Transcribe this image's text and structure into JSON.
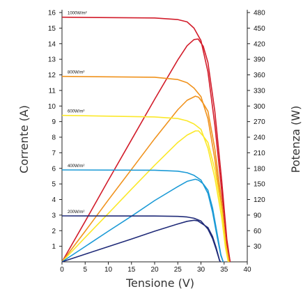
{
  "chart_data": {
    "type": "line",
    "xlabel": "Tensione (V)",
    "ylabel_left": "Corrente (A)",
    "ylabel_right": "Potenza (W)",
    "xlim": [
      0,
      40
    ],
    "ylim_left": [
      0,
      16
    ],
    "ylim_right": [
      0,
      480
    ],
    "x_ticks": [
      "0",
      "5",
      "10",
      "15",
      "20",
      "25",
      "30",
      "35",
      "40"
    ],
    "y_left_ticks": [
      "1",
      "2",
      "3",
      "4",
      "5",
      "6",
      "7",
      "8",
      "9",
      "10",
      "11",
      "12",
      "13",
      "14",
      "15",
      "16"
    ],
    "y_right_ticks": [
      "30",
      "60",
      "90",
      "120",
      "150",
      "180",
      "210",
      "240",
      "270",
      "300",
      "330",
      "360",
      "390",
      "420",
      "450",
      "480"
    ],
    "grid": false,
    "series": [
      {
        "name": "1000W/m²",
        "color": "#d21c2a",
        "current": [
          [
            0,
            15.7
          ],
          [
            20,
            15.65
          ],
          [
            25,
            15.55
          ],
          [
            27,
            15.4
          ],
          [
            28.5,
            15.0
          ],
          [
            30,
            14.2
          ],
          [
            31.5,
            12.2
          ],
          [
            33,
            8.8
          ],
          [
            34.5,
            4.5
          ],
          [
            35.6,
            1.2
          ],
          [
            36.3,
            0
          ]
        ],
        "power": [
          [
            0,
            0
          ],
          [
            5,
            78
          ],
          [
            10,
            157
          ],
          [
            15,
            235
          ],
          [
            20,
            313
          ],
          [
            25,
            389
          ],
          [
            27,
            416
          ],
          [
            28.5,
            428
          ],
          [
            29.4,
            429
          ],
          [
            30.5,
            415
          ],
          [
            31.5,
            384
          ],
          [
            33,
            290
          ],
          [
            34.5,
            155
          ],
          [
            35.6,
            43
          ],
          [
            36.3,
            0
          ]
        ]
      },
      {
        "name": "800W/m²",
        "color": "#f0921c",
        "current": [
          [
            0,
            11.9
          ],
          [
            20,
            11.85
          ],
          [
            25,
            11.7
          ],
          [
            27,
            11.5
          ],
          [
            28.5,
            11.15
          ],
          [
            30,
            10.6
          ],
          [
            31.5,
            9.2
          ],
          [
            33,
            6.6
          ],
          [
            34.5,
            3.3
          ],
          [
            35.4,
            1.0
          ],
          [
            36.1,
            0
          ]
        ],
        "power": [
          [
            0,
            0
          ],
          [
            5,
            59
          ],
          [
            10,
            119
          ],
          [
            15,
            178
          ],
          [
            20,
            237
          ],
          [
            25,
            293
          ],
          [
            27,
            311
          ],
          [
            28.8,
            319
          ],
          [
            29.5,
            317
          ],
          [
            30.5,
            305
          ],
          [
            31.5,
            290
          ],
          [
            33,
            218
          ],
          [
            34.5,
            114
          ],
          [
            35.4,
            35
          ],
          [
            36.1,
            0
          ]
        ]
      },
      {
        "name": "600W/m²",
        "color": "#fbe82a",
        "current": [
          [
            0,
            9.4
          ],
          [
            20,
            9.3
          ],
          [
            25,
            9.2
          ],
          [
            27,
            9.05
          ],
          [
            28.5,
            8.85
          ],
          [
            30,
            8.5
          ],
          [
            31.5,
            7.3
          ],
          [
            33,
            5.4
          ],
          [
            34.5,
            2.8
          ],
          [
            35.3,
            0.9
          ],
          [
            35.9,
            0
          ]
        ],
        "power": [
          [
            0,
            0
          ],
          [
            5,
            47
          ],
          [
            10,
            93
          ],
          [
            15,
            140
          ],
          [
            20,
            186
          ],
          [
            25,
            230
          ],
          [
            27,
            244
          ],
          [
            28.8,
            252
          ],
          [
            29.5,
            252
          ],
          [
            30.5,
            242
          ],
          [
            31.5,
            230
          ],
          [
            33,
            178
          ],
          [
            34.5,
            97
          ],
          [
            35.3,
            32
          ],
          [
            35.9,
            0
          ]
        ]
      },
      {
        "name": "400W/m²",
        "color": "#1b9ad6",
        "current": [
          [
            0,
            5.9
          ],
          [
            20,
            5.88
          ],
          [
            25,
            5.82
          ],
          [
            27,
            5.72
          ],
          [
            28.5,
            5.55
          ],
          [
            30,
            5.25
          ],
          [
            31.5,
            4.4
          ],
          [
            32.5,
            3.2
          ],
          [
            33.5,
            1.6
          ],
          [
            34.3,
            0.4
          ],
          [
            34.8,
            0
          ]
        ],
        "power": [
          [
            0,
            0
          ],
          [
            5,
            29.5
          ],
          [
            10,
            59
          ],
          [
            15,
            88
          ],
          [
            20,
            118
          ],
          [
            25,
            145
          ],
          [
            27,
            155
          ],
          [
            28.8,
            159
          ],
          [
            29.5,
            157
          ],
          [
            30.5,
            150
          ],
          [
            31.5,
            138
          ],
          [
            32.5,
            104
          ],
          [
            33.5,
            54
          ],
          [
            34.3,
            14
          ],
          [
            34.8,
            0
          ]
        ]
      },
      {
        "name": "200W/m²",
        "color": "#1f2a78",
        "current": [
          [
            0,
            2.95
          ],
          [
            20,
            2.94
          ],
          [
            25,
            2.92
          ],
          [
            27,
            2.88
          ],
          [
            28.5,
            2.8
          ],
          [
            30,
            2.62
          ],
          [
            31.5,
            2.1
          ],
          [
            32.5,
            1.5
          ],
          [
            33.3,
            0.8
          ],
          [
            34,
            0.1
          ],
          [
            34.2,
            0
          ]
        ],
        "power": [
          [
            0,
            0
          ],
          [
            5,
            14.7
          ],
          [
            10,
            29.4
          ],
          [
            15,
            44
          ],
          [
            20,
            59
          ],
          [
            25,
            73
          ],
          [
            27,
            78
          ],
          [
            28.5,
            80
          ],
          [
            29.3,
            79
          ],
          [
            30.5,
            72
          ],
          [
            31.5,
            66
          ],
          [
            32.5,
            49
          ],
          [
            33.3,
            27
          ],
          [
            34,
            3.4
          ],
          [
            34.2,
            0
          ]
        ]
      }
    ],
    "irradiance_labels": [
      "1000W/m²",
      "800W/m²",
      "600W/m²",
      "400W/m²",
      "200W/m²"
    ]
  }
}
